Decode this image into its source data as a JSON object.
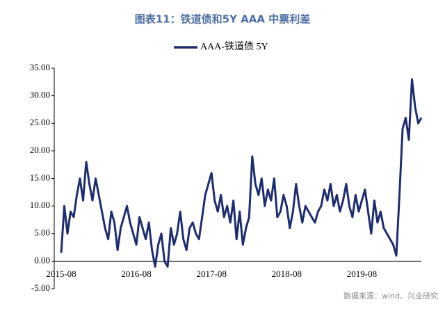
{
  "chart_data": {
    "type": "line",
    "title": "图表11：铁道债和5Y AAA 中票利差",
    "source": "数据来源：wind、兴业研究",
    "categories": [
      "2015-08",
      null,
      null,
      null,
      null,
      null,
      null,
      null,
      null,
      null,
      null,
      null,
      null,
      null,
      null,
      null,
      null,
      null,
      null,
      null,
      null,
      null,
      null,
      null,
      "2016-08",
      null,
      null,
      null,
      null,
      null,
      null,
      null,
      null,
      null,
      null,
      null,
      null,
      null,
      null,
      null,
      null,
      null,
      null,
      null,
      null,
      null,
      null,
      null,
      "2017-08",
      null,
      null,
      null,
      null,
      null,
      null,
      null,
      null,
      null,
      null,
      null,
      null,
      null,
      null,
      null,
      null,
      null,
      null,
      null,
      null,
      null,
      null,
      null,
      "2018-08",
      null,
      null,
      null,
      null,
      null,
      null,
      null,
      null,
      null,
      null,
      null,
      null,
      null,
      null,
      null,
      null,
      null,
      null,
      null,
      null,
      null,
      null,
      null,
      "2019-08",
      null,
      null,
      null,
      null,
      null,
      null,
      null,
      null,
      null,
      null,
      null,
      null,
      null,
      null,
      null,
      null,
      null,
      null,
      null
    ],
    "series": [
      {
        "name": "AAA-铁道债 5Y",
        "color": "#1f2d6b",
        "values": [
          1.5,
          10,
          5,
          9,
          8,
          12,
          15,
          11,
          18,
          14,
          11,
          15,
          12,
          9,
          6,
          4,
          9,
          7,
          2,
          6,
          8,
          10,
          7,
          5,
          3,
          8,
          6,
          4,
          7,
          2,
          -1,
          3,
          5,
          0,
          -1,
          6,
          3,
          5,
          9,
          4,
          2,
          6,
          7,
          5,
          4,
          8,
          12,
          14,
          16,
          11,
          9,
          12,
          8,
          10,
          7,
          11,
          4,
          9,
          3,
          6,
          8,
          19,
          14,
          12,
          15,
          10,
          13,
          11,
          15,
          8,
          9,
          12,
          10,
          6,
          9,
          14,
          10,
          7,
          10,
          9,
          8,
          7,
          9,
          10,
          13,
          11,
          14,
          10,
          12,
          9,
          11,
          14,
          10,
          8,
          12,
          9,
          11,
          13,
          9,
          5,
          11,
          7,
          9,
          6,
          5,
          4,
          3,
          1,
          12,
          24,
          26,
          22,
          33,
          28,
          25,
          26
        ]
      }
    ],
    "ylim": [
      -5,
      35
    ],
    "yticks": [
      {
        "value": -5,
        "label": "-5.00"
      },
      {
        "value": 0,
        "label": "0.00"
      },
      {
        "value": 5,
        "label": "5.00"
      },
      {
        "value": 10,
        "label": "10.00"
      },
      {
        "value": 15,
        "label": "15.00"
      },
      {
        "value": 20,
        "label": "20.00"
      },
      {
        "value": 25,
        "label": "25.00"
      },
      {
        "value": 30,
        "label": "30.00"
      },
      {
        "value": 35,
        "label": "35.00"
      }
    ]
  }
}
